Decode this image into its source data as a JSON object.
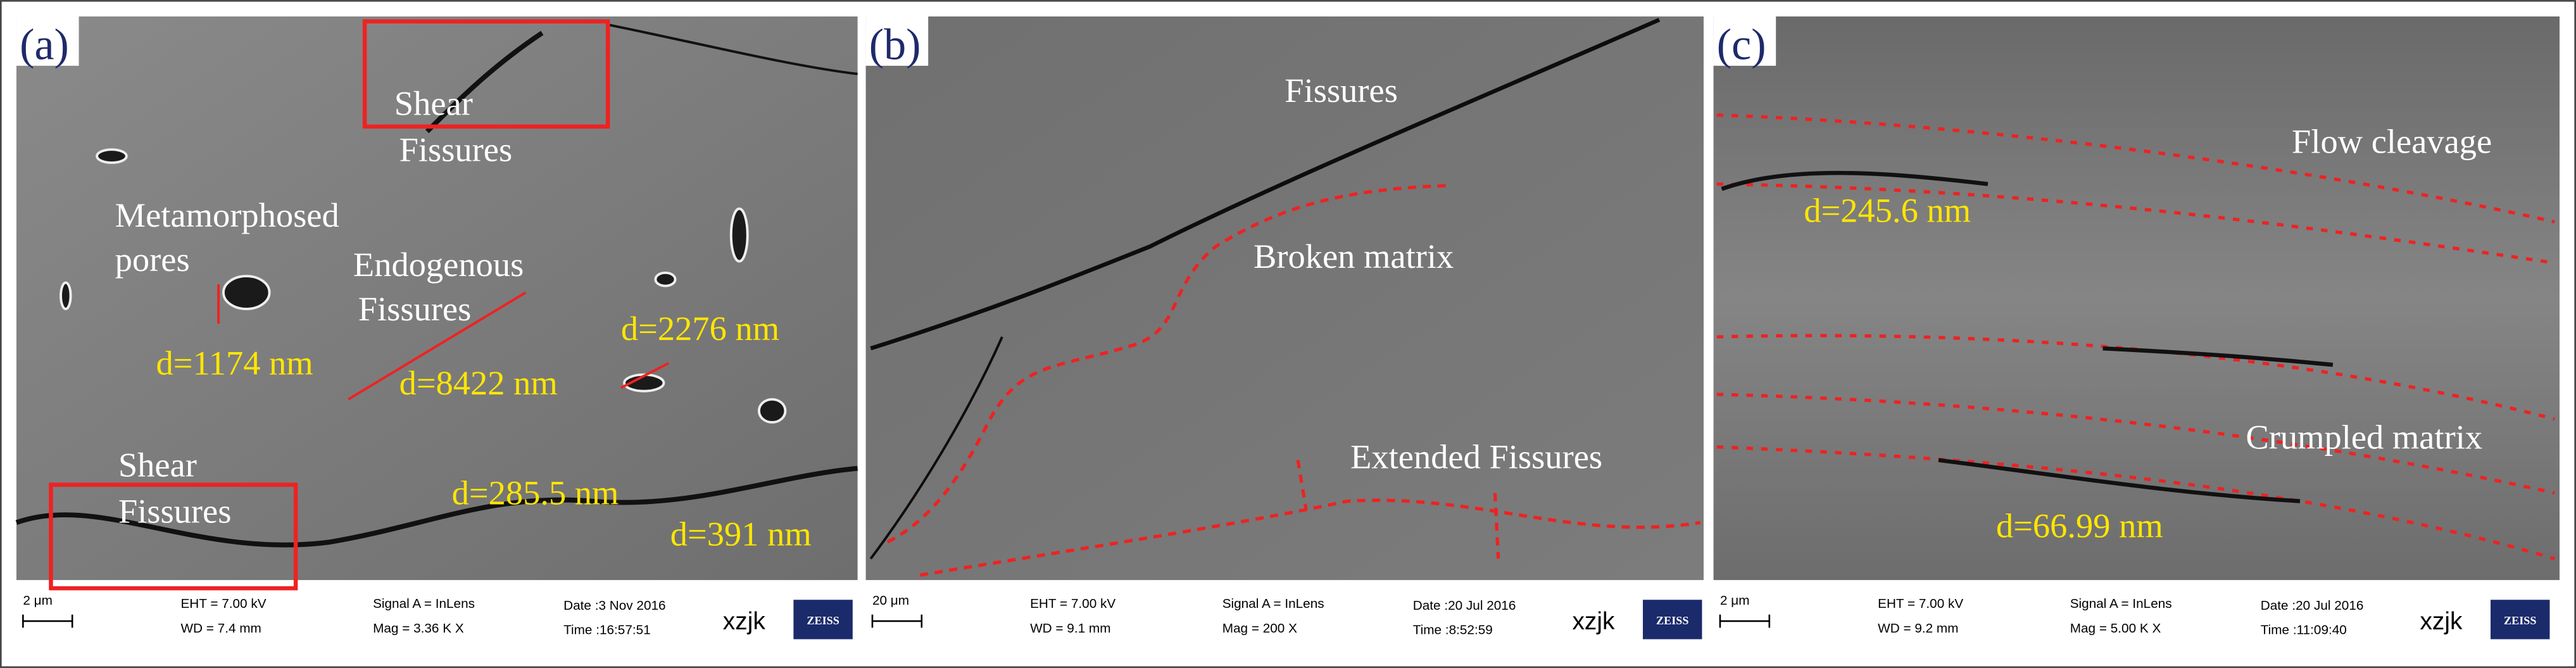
{
  "panels": [
    {
      "label": "(a)",
      "annotations": [
        "Shear",
        "Fissures",
        "Metamorphosed",
        "pores",
        "Endogenous",
        "Fissures",
        "Shear",
        "Fissures"
      ],
      "measurements": [
        "d=1174 nm",
        "d=8422 nm",
        "d=2276 nm",
        "d=285.5 nm",
        "d=391 nm"
      ],
      "info": {
        "scale": "2 μm",
        "eht": "EHT = 7.00 kV",
        "wd": "WD = 7.4 mm",
        "signal": "Signal A = InLens",
        "mag": "Mag =  3.36 K X",
        "date": "Date :3 Nov 2016",
        "time": "Time :16:57:51",
        "operator": "xzjk",
        "brand": "ZEISS"
      }
    },
    {
      "label": "(b)",
      "annotations": [
        "Fissures",
        "Broken matrix",
        "Extended Fissures"
      ],
      "measurements": [],
      "info": {
        "scale": "20 μm",
        "eht": "EHT = 7.00 kV",
        "wd": "WD = 9.1 mm",
        "signal": "Signal A = InLens",
        "mag": "Mag =  200 X",
        "date": "Date :20 Jul 2016",
        "time": "Time :8:52:59",
        "operator": "xzjk",
        "brand": "ZEISS"
      }
    },
    {
      "label": "(c)",
      "annotations": [
        "Flow cleavage",
        "Crumpled matrix"
      ],
      "measurements": [
        "d=245.6 nm",
        "d=66.99 nm"
      ],
      "info": {
        "scale": "2 μm",
        "eht": "EHT = 7.00 kV",
        "wd": "WD = 9.2 mm",
        "signal": "Signal A = InLens",
        "mag": "Mag =  5.00 K X",
        "date": "Date :20 Jul 2016",
        "time": "Time :11:09:40",
        "operator": "xzjk",
        "brand": "ZEISS"
      }
    }
  ]
}
